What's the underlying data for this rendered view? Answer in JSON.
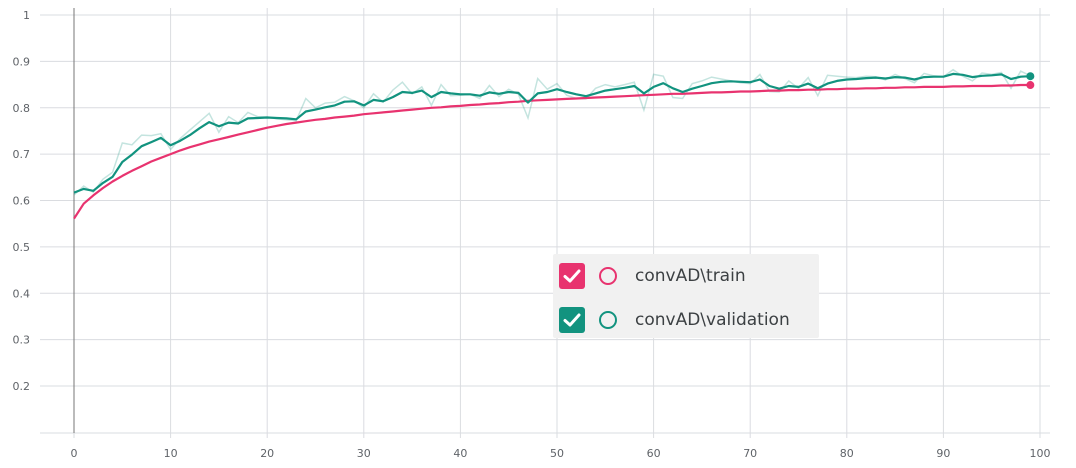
{
  "chart_data": {
    "type": "line",
    "xlim": [
      0,
      100
    ],
    "ylim": [
      0.1,
      1.0
    ],
    "x_ticks": [
      0,
      10,
      20,
      30,
      40,
      50,
      60,
      70,
      80,
      90,
      100
    ],
    "y_ticks": [
      0.2,
      0.3,
      0.4,
      0.5,
      0.6,
      0.7,
      0.8,
      0.9,
      1
    ],
    "x_tick_labels": [
      "0",
      "10",
      "20",
      "30",
      "40",
      "50",
      "60",
      "70",
      "80",
      "90",
      "100"
    ],
    "y_tick_labels": [
      "0.2",
      "0.3",
      "0.4",
      "0.5",
      "0.6",
      "0.7",
      "0.8",
      "0.9",
      "1"
    ],
    "grid": true,
    "legend_position": "center-right",
    "series": [
      {
        "name": "convAD\\train",
        "color": "#e8336f",
        "x": [
          0,
          1,
          2,
          3,
          4,
          5,
          6,
          7,
          8,
          9,
          10,
          11,
          12,
          13,
          14,
          15,
          16,
          17,
          18,
          19,
          20,
          21,
          22,
          23,
          24,
          25,
          26,
          27,
          28,
          29,
          30,
          31,
          32,
          33,
          34,
          35,
          36,
          37,
          38,
          39,
          40,
          41,
          42,
          43,
          44,
          45,
          46,
          47,
          48,
          49,
          50,
          51,
          52,
          53,
          54,
          55,
          56,
          57,
          58,
          59,
          60,
          61,
          62,
          63,
          64,
          65,
          66,
          67,
          68,
          69,
          70,
          71,
          72,
          73,
          74,
          75,
          76,
          77,
          78,
          79,
          80,
          81,
          82,
          83,
          84,
          85,
          86,
          87,
          88,
          89,
          90,
          91,
          92,
          93,
          94,
          95,
          96,
          97,
          98,
          99
        ],
        "values": [
          0.561,
          0.593,
          0.611,
          0.627,
          0.641,
          0.653,
          0.664,
          0.674,
          0.684,
          0.692,
          0.7,
          0.708,
          0.715,
          0.721,
          0.727,
          0.732,
          0.737,
          0.742,
          0.747,
          0.752,
          0.757,
          0.761,
          0.765,
          0.768,
          0.771,
          0.774,
          0.776,
          0.779,
          0.781,
          0.783,
          0.786,
          0.788,
          0.79,
          0.792,
          0.794,
          0.796,
          0.798,
          0.8,
          0.801,
          0.803,
          0.804,
          0.806,
          0.807,
          0.809,
          0.81,
          0.812,
          0.813,
          0.815,
          0.816,
          0.817,
          0.818,
          0.819,
          0.82,
          0.821,
          0.822,
          0.823,
          0.824,
          0.825,
          0.826,
          0.827,
          0.828,
          0.829,
          0.83,
          0.83,
          0.831,
          0.832,
          0.833,
          0.833,
          0.834,
          0.835,
          0.835,
          0.836,
          0.837,
          0.837,
          0.838,
          0.838,
          0.839,
          0.839,
          0.84,
          0.84,
          0.841,
          0.841,
          0.842,
          0.842,
          0.843,
          0.843,
          0.844,
          0.844,
          0.845,
          0.845,
          0.845,
          0.846,
          0.846,
          0.847,
          0.847,
          0.847,
          0.848,
          0.848,
          0.849,
          0.849
        ]
      },
      {
        "name": "convAD\\validation",
        "color": "#12937f",
        "x": [
          0,
          1,
          2,
          3,
          4,
          5,
          6,
          7,
          8,
          9,
          10,
          11,
          12,
          13,
          14,
          15,
          16,
          17,
          18,
          19,
          20,
          21,
          22,
          23,
          24,
          25,
          26,
          27,
          28,
          29,
          30,
          31,
          32,
          33,
          34,
          35,
          36,
          37,
          38,
          39,
          40,
          41,
          42,
          43,
          44,
          45,
          46,
          47,
          48,
          49,
          50,
          51,
          52,
          53,
          54,
          55,
          56,
          57,
          58,
          59,
          60,
          61,
          62,
          63,
          64,
          65,
          66,
          67,
          68,
          69,
          70,
          71,
          72,
          73,
          74,
          75,
          76,
          77,
          78,
          79,
          80,
          81,
          82,
          83,
          84,
          85,
          86,
          87,
          88,
          89,
          90,
          91,
          92,
          93,
          94,
          95,
          96,
          97,
          98,
          99
        ],
        "values": [
          0.617,
          0.625,
          0.621,
          0.638,
          0.651,
          0.683,
          0.699,
          0.717,
          0.726,
          0.735,
          0.719,
          0.729,
          0.741,
          0.756,
          0.769,
          0.76,
          0.768,
          0.766,
          0.777,
          0.778,
          0.779,
          0.778,
          0.777,
          0.775,
          0.792,
          0.796,
          0.801,
          0.805,
          0.813,
          0.814,
          0.805,
          0.817,
          0.814,
          0.823,
          0.834,
          0.832,
          0.837,
          0.823,
          0.834,
          0.831,
          0.829,
          0.829,
          0.826,
          0.833,
          0.83,
          0.834,
          0.832,
          0.811,
          0.831,
          0.834,
          0.84,
          0.834,
          0.829,
          0.825,
          0.831,
          0.837,
          0.84,
          0.843,
          0.847,
          0.831,
          0.845,
          0.853,
          0.842,
          0.834,
          0.841,
          0.847,
          0.853,
          0.856,
          0.857,
          0.856,
          0.855,
          0.861,
          0.847,
          0.841,
          0.847,
          0.845,
          0.852,
          0.842,
          0.852,
          0.858,
          0.861,
          0.862,
          0.864,
          0.865,
          0.863,
          0.866,
          0.865,
          0.861,
          0.866,
          0.867,
          0.867,
          0.873,
          0.871,
          0.866,
          0.869,
          0.87,
          0.872,
          0.862,
          0.867,
          0.868
        ],
        "raw_values": [
          0.612,
          0.631,
          0.618,
          0.646,
          0.661,
          0.724,
          0.72,
          0.741,
          0.74,
          0.744,
          0.71,
          0.734,
          0.752,
          0.77,
          0.788,
          0.747,
          0.781,
          0.768,
          0.79,
          0.781,
          0.78,
          0.776,
          0.774,
          0.772,
          0.82,
          0.8,
          0.81,
          0.812,
          0.824,
          0.815,
          0.8,
          0.83,
          0.812,
          0.838,
          0.855,
          0.83,
          0.845,
          0.805,
          0.85,
          0.826,
          0.827,
          0.829,
          0.82,
          0.848,
          0.824,
          0.84,
          0.829,
          0.778,
          0.863,
          0.84,
          0.852,
          0.827,
          0.82,
          0.819,
          0.842,
          0.85,
          0.845,
          0.85,
          0.855,
          0.795,
          0.872,
          0.868,
          0.822,
          0.82,
          0.852,
          0.858,
          0.866,
          0.862,
          0.858,
          0.854,
          0.852,
          0.872,
          0.835,
          0.834,
          0.858,
          0.842,
          0.865,
          0.826,
          0.87,
          0.868,
          0.866,
          0.865,
          0.868,
          0.867,
          0.86,
          0.872,
          0.863,
          0.854,
          0.874,
          0.869,
          0.867,
          0.882,
          0.868,
          0.858,
          0.875,
          0.872,
          0.876,
          0.842,
          0.879,
          0.869
        ]
      }
    ]
  },
  "legend": {
    "items": [
      {
        "label": "convAD\\train",
        "color": "#e8336f",
        "icon": "check-icon"
      },
      {
        "label": "convAD\\validation",
        "color": "#12937f",
        "icon": "check-icon"
      }
    ]
  },
  "colors": {
    "grid": "#dadce0",
    "axis": "#777777",
    "tick_text": "#5f6368",
    "legend_bg": "#f1f1f1"
  }
}
